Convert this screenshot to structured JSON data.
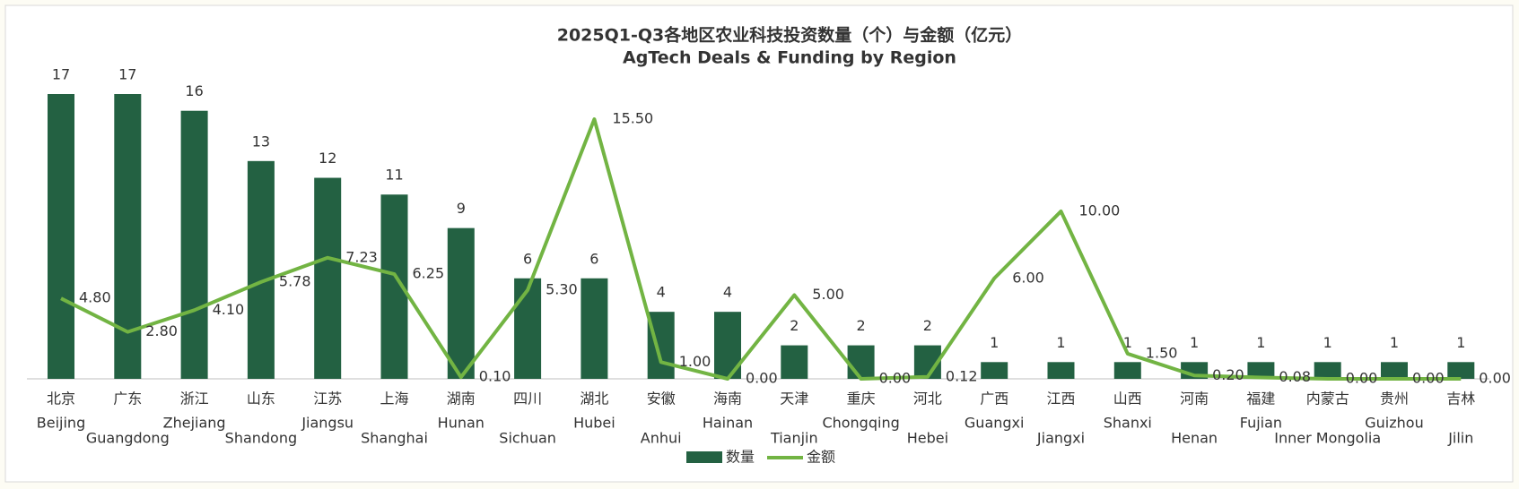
{
  "chart_data": {
    "type": "bar",
    "title": "2025Q1-Q3各地区农业科技投资数量（个）与金额（亿元）",
    "subtitle": "AgTech Deals & Funding by Region",
    "categories": [
      "北京",
      "广东",
      "浙江",
      "山东",
      "江苏",
      "上海",
      "湖南",
      "四川",
      "湖北",
      "安徽",
      "海南",
      "天津",
      "重庆",
      "河北",
      "广西",
      "江西",
      "山西",
      "河南",
      "福建",
      "内蒙古",
      "贵州",
      "吉林"
    ],
    "categories_en": [
      "Beijing",
      "Guangdong",
      "Zhejiang",
      "Shandong",
      "Jiangsu",
      "Shanghai",
      "Hunan",
      "Sichuan",
      "Hubei",
      "Anhui",
      "Hainan",
      "Tianjin",
      "Chongqing",
      "Hebei",
      "Guangxi",
      "Jiangxi",
      "Shanxi",
      "Henan",
      "Fujian",
      "Inner Mongolia",
      "Guizhou",
      "Jilin"
    ],
    "series": [
      {
        "name": "数量",
        "type": "bar",
        "color": "#236142",
        "values": [
          17,
          17,
          16,
          13,
          12,
          11,
          9,
          6,
          6,
          4,
          4,
          2,
          2,
          2,
          1,
          1,
          1,
          1,
          1,
          1,
          1,
          1
        ]
      },
      {
        "name": "金额",
        "type": "line",
        "axis": "y2",
        "color": "#72b443",
        "values": [
          4.8,
          2.8,
          4.1,
          5.78,
          7.23,
          6.25,
          0.1,
          5.3,
          15.5,
          1,
          0,
          5,
          0,
          0.12,
          6,
          10,
          1.5,
          0.2,
          0.08,
          0,
          0,
          0
        ],
        "value_labels": [
          "4.80",
          "2.80",
          "4.10",
          "5.78",
          "7.23",
          "6.25",
          "0.10",
          "5.30",
          "15.50",
          "1.00",
          "0.00",
          "5.00",
          "0.00",
          "0.12",
          "6.00",
          "10.00",
          "1.50",
          "0.20",
          "0.08",
          "0.00",
          "0.00",
          "0.00"
        ]
      }
    ],
    "ylim": [
      0,
      17
    ],
    "y2lim": [
      0,
      17
    ],
    "legend": "bottom"
  }
}
